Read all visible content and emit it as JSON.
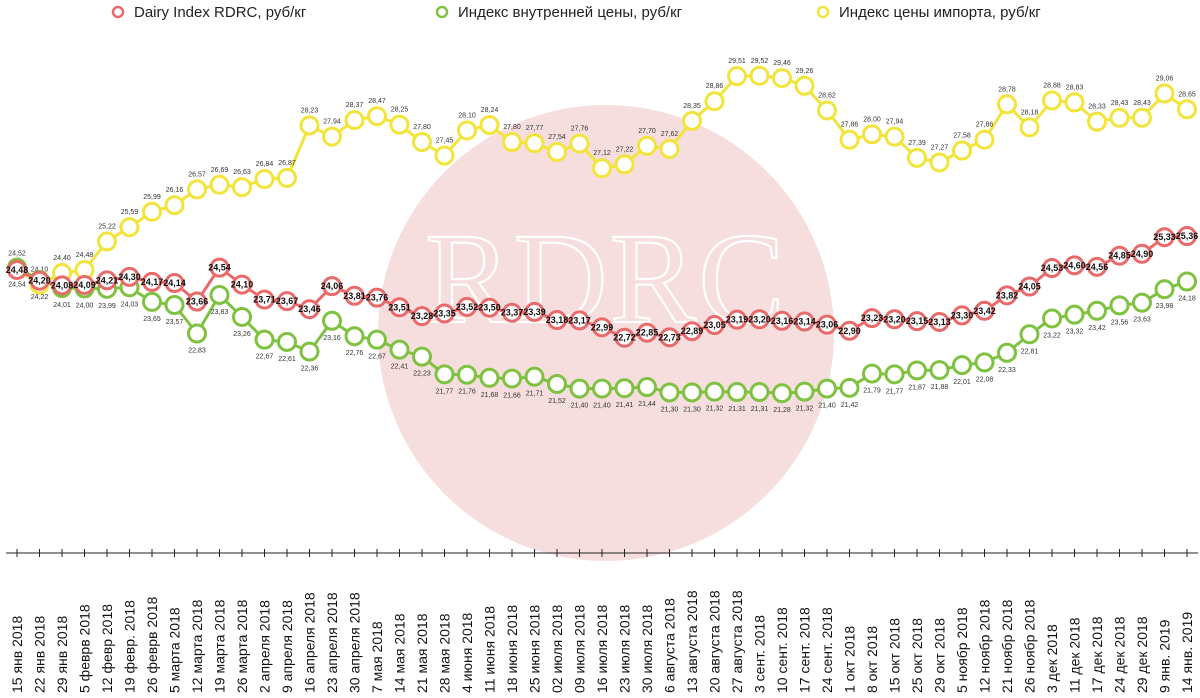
{
  "chart_data": {
    "type": "line",
    "watermark": "RDRC",
    "colors": {
      "dairy": "#e86a6a",
      "domestic": "#7fc241",
      "import": "#f3e43b",
      "watermark_circle": "#f6dede"
    },
    "legend_position": "top",
    "grid": false,
    "ylim": [
      21.0,
      29.8
    ],
    "categories": [
      "15 янв 2018",
      "22 янв 2018",
      "29 янв 2018",
      "5 феврв 2018",
      "12 февр 2018",
      "19 февр. 2018",
      "26 феврв 2018",
      "5 марта 2018",
      "12 марта 2018",
      "19 марта 2018",
      "26 марта 2018",
      "2 апреля 2018",
      "9 апреля 2018",
      "16 апреля 2018",
      "23 апреля 2018",
      "30 апреля 2018",
      "7 мая 2018",
      "14 мая 2018",
      "21 мая 2018",
      "28 мая 2018",
      "4 июня 2018",
      "11 июня 2018",
      "18 июня 2018",
      "25 июня 2018",
      "02 июля 2018",
      "09 июля 2018",
      "16 июля 2018",
      "23 июля 2018",
      "30 июля 2018",
      "6 августа 2018",
      "13 августа 2018",
      "20 августа 2018",
      "27 августа 2018",
      "3 сент. 2018",
      "10 сент. 2018",
      "17 сент. 2018",
      "24 сент. 2018",
      "1 окт 2018",
      "8 окт 2018",
      "15 окт 2018",
      "25 окт 2018",
      "29 окт 2018",
      "5 ноябр 2018",
      "12 ноябр 2018",
      "21 ноябр 2018",
      "26 ноябр 2018",
      "3 дек 2018",
      "11 дек 2018",
      "17 дек 2018",
      "24 дек 2018",
      "29 дек 2018",
      "9 янв. 2019",
      "14 янв. 2019"
    ],
    "series": [
      {
        "name": "Dairy Index RDRC,    руб/кг",
        "key": "dairy",
        "values": [
          24.48,
          24.2,
          24.08,
          24.09,
          24.21,
          24.3,
          24.17,
          24.14,
          23.66,
          24.54,
          24.1,
          23.71,
          23.67,
          23.46,
          24.06,
          23.81,
          23.76,
          23.51,
          23.28,
          23.35,
          23.52,
          23.5,
          23.37,
          23.39,
          23.18,
          23.17,
          22.99,
          22.72,
          22.85,
          22.73,
          22.89,
          23.05,
          23.19,
          23.2,
          23.16,
          23.14,
          23.06,
          22.9,
          23.23,
          23.2,
          23.15,
          23.13,
          23.3,
          23.42,
          23.82,
          24.05,
          24.53,
          24.6,
          24.56,
          24.85,
          24.9,
          25.33,
          25.36
        ],
        "labels": [
          "24,48",
          "24,20",
          "24,08",
          "24,09",
          "24,21",
          "24,30",
          "24,17",
          "24,14",
          "23,66",
          "24,54",
          "24,10",
          "23,71",
          "23,67",
          "23,46",
          "24,06",
          "23,81",
          "23,76",
          "23,51",
          "23,28",
          "23,35",
          "23,52",
          "23,50",
          "23,37",
          "23,39",
          "23,18",
          "23,17",
          "22,99",
          "22,72",
          "22,85",
          "22,73",
          "22,89",
          "23,05",
          "23,19",
          "23,20",
          "23,16",
          "23,14",
          "23,06",
          "22,90",
          "23,23",
          "23,20",
          "23,15",
          "23,13",
          "23,30",
          "23,42",
          "23,82",
          "24,05",
          "24,53",
          "24,60",
          "24,56",
          "24,85",
          "24,90",
          "25,33",
          "25,36"
        ]
      },
      {
        "name": "Индекс внутренней цены, руб/кг",
        "key": "domestic",
        "values": [
          24.54,
          24.22,
          24.01,
          24.0,
          23.99,
          24.03,
          23.65,
          23.57,
          22.83,
          23.83,
          23.26,
          22.67,
          22.61,
          22.36,
          23.16,
          22.76,
          22.67,
          22.41,
          22.23,
          21.77,
          21.76,
          21.68,
          21.66,
          21.71,
          21.52,
          21.4,
          21.4,
          21.41,
          21.44,
          21.3,
          21.3,
          21.32,
          21.31,
          21.31,
          21.28,
          21.32,
          21.4,
          21.42,
          21.79,
          21.77,
          21.87,
          21.88,
          22.01,
          22.08,
          22.33,
          22.81,
          23.22,
          23.32,
          23.42,
          23.56,
          23.63,
          23.98,
          24.18
        ],
        "labels": [
          "24,54",
          "24,22",
          "24,01",
          "24,00",
          "23,99",
          "24,03",
          "23,65",
          "23,57",
          "22,83",
          "23,83",
          "23,26",
          "22,67",
          "22,61",
          "22,36",
          "23,16",
          "22,76",
          "22,67",
          "22,41",
          "22,23",
          "21,77",
          "21,76",
          "21,68",
          "21,66",
          "21,71",
          "21,52",
          "21,40",
          "21,40",
          "21,41",
          "21,44",
          "21,30",
          "21,30",
          "21,32",
          "21,31",
          "21,31",
          "21,28",
          "21,32",
          "21,40",
          "21,42",
          "21,79",
          "21,77",
          "21,87",
          "21,88",
          "22,01",
          "22,08",
          "22,33",
          "22,81",
          "23,22",
          "23,32",
          "23,42",
          "23,56",
          "23,63",
          "23,98",
          "24,18"
        ]
      },
      {
        "name": "Индекс цены импорта, руб/кг",
        "key": "import",
        "values": [
          24.52,
          24.1,
          24.4,
          24.48,
          25.22,
          25.59,
          25.99,
          26.16,
          26.57,
          26.69,
          26.63,
          26.84,
          26.87,
          28.23,
          27.94,
          28.37,
          28.47,
          28.25,
          27.8,
          27.45,
          28.1,
          28.24,
          27.8,
          27.77,
          27.54,
          27.76,
          27.12,
          27.22,
          27.7,
          27.62,
          28.35,
          28.86,
          29.51,
          29.52,
          29.46,
          29.26,
          28.62,
          27.86,
          28.0,
          27.94,
          27.39,
          27.27,
          27.58,
          27.86,
          28.78,
          28.18,
          28.88,
          28.83,
          28.33,
          28.43,
          28.43,
          29.06,
          28.65
        ],
        "labels": [
          "24,52",
          "24,10",
          "24,40",
          "24,48",
          "25,22",
          "25,59",
          "25,99",
          "26,16",
          "26,57",
          "26,69",
          "26,63",
          "26,84",
          "26,87",
          "28,23",
          "27,94",
          "28,37",
          "28,47",
          "28,25",
          "27,80",
          "27,45",
          "28,10",
          "28,24",
          "27,80",
          "27,77",
          "27,54",
          "27,76",
          "27,12",
          "27,22",
          "27,70",
          "27,62",
          "28,35",
          "28,86",
          "29,51",
          "29,52",
          "29,46",
          "29,26",
          "28,62",
          "27,86",
          "28,00",
          "27,94",
          "27,39",
          "27,27",
          "27,58",
          "27,86",
          "28,78",
          "28,18",
          "28,88",
          "28,83",
          "28,33",
          "28,43",
          "28,43",
          "29,06",
          "28,65"
        ]
      }
    ]
  }
}
